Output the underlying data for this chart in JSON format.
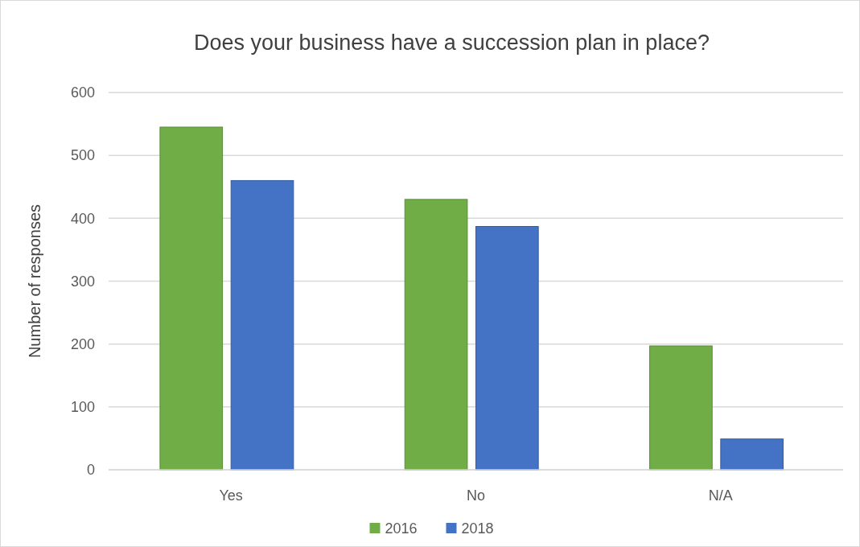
{
  "chart_data": {
    "type": "bar",
    "title": "Does your business have a succession plan in place?",
    "ylabel": "Number of responses",
    "categories": [
      "Yes",
      "No",
      "N/A"
    ],
    "series": [
      {
        "name": "2016",
        "color": "#70ad47",
        "values": [
          545,
          430,
          197
        ]
      },
      {
        "name": "2018",
        "color": "#4472c4",
        "values": [
          460,
          387,
          49
        ]
      }
    ],
    "ylim": [
      0,
      600
    ],
    "yticks": [
      0,
      100,
      200,
      300,
      400,
      500,
      600
    ],
    "grid": "y",
    "legend": "bottom"
  }
}
